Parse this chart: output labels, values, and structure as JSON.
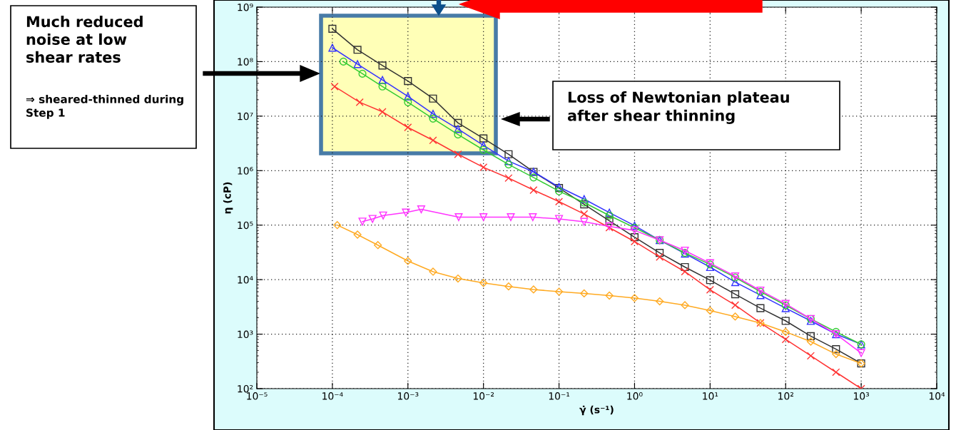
{
  "chart_data": {
    "type": "line",
    "xlabel": "γ̇ (s⁻¹)",
    "ylabel": "η (cP)",
    "log": "xy",
    "grid": true,
    "line_style": "solid",
    "xlim": [
      1e-05,
      10000.0
    ],
    "ylim": [
      100,
      1000000000.0
    ],
    "xticks": [
      {
        "value": 1e-05,
        "label": "10⁻⁵"
      },
      {
        "value": 0.0001,
        "label": "10⁻⁴"
      },
      {
        "value": 0.001,
        "label": "10⁻³"
      },
      {
        "value": 0.01,
        "label": "10⁻²"
      },
      {
        "value": 0.1,
        "label": "10⁻¹"
      },
      {
        "value": 1,
        "label": "10⁰"
      },
      {
        "value": 10,
        "label": "10¹"
      },
      {
        "value": 100,
        "label": "10²"
      },
      {
        "value": 1000,
        "label": "10³"
      },
      {
        "value": 10000,
        "label": "10⁴"
      }
    ],
    "yticks": [
      {
        "value": 100,
        "label": "10²"
      },
      {
        "value": 1000,
        "label": "10³"
      },
      {
        "value": 10000,
        "label": "10⁴"
      },
      {
        "value": 100000,
        "label": "10⁵"
      },
      {
        "value": 1000000,
        "label": "10⁶"
      },
      {
        "value": 10000000,
        "label": "10⁷"
      },
      {
        "value": 100000000,
        "label": "10⁸"
      },
      {
        "value": 1000000000,
        "label": "10⁹"
      }
    ],
    "series": [
      {
        "color": "#333333",
        "marker": "square",
        "x": [
          0.0001,
          0.000215,
          0.00046,
          0.001,
          0.00215,
          0.0046,
          0.01,
          0.0215,
          0.046,
          0.1,
          0.215,
          0.464,
          1,
          2.15,
          4.64,
          10,
          21.5,
          46.4,
          100,
          215,
          464,
          1000
        ],
        "values": [
          400000000.0,
          165000000.0,
          85000000.0,
          44000000.0,
          21000000.0,
          7500000.0,
          3900000.0,
          2000000.0,
          950000.0,
          480000.0,
          240000.0,
          120000.0,
          60000.0,
          31000.0,
          17000.0,
          9800.0,
          5400.0,
          3000.0,
          1750.0,
          920,
          530,
          290
        ]
      },
      {
        "color": "#3333ff",
        "marker": "triangle",
        "x": [
          0.0001,
          0.000215,
          0.00046,
          0.001,
          0.00215,
          0.0046,
          0.01,
          0.0215,
          0.046,
          0.1,
          0.215,
          0.464,
          1,
          2.15,
          4.64,
          10,
          21.5,
          46.4,
          100,
          215,
          464,
          1000
        ],
        "values": [
          180000000.0,
          90000000.0,
          46000000.0,
          23000000.0,
          11000000.0,
          5800000.0,
          2900000.0,
          1500000.0,
          950000.0,
          500000.0,
          300000.0,
          170000.0,
          98000.0,
          53000.0,
          30000.0,
          17000.0,
          9000.0,
          5200.0,
          3000.0,
          1750.0,
          1000.0,
          650
        ]
      },
      {
        "color": "#33cc33",
        "marker": "circle",
        "x": [
          0.00014,
          0.00025,
          0.00046,
          0.001,
          0.00215,
          0.0046,
          0.01,
          0.0215,
          0.046,
          0.1,
          0.215,
          0.464,
          1,
          2.15,
          4.64,
          10,
          21.5,
          46.4,
          100,
          215,
          464,
          1000
        ],
        "values": [
          100000000.0,
          60000000.0,
          35000000.0,
          18000000.0,
          9000000.0,
          4600000.0,
          2400000.0,
          1300000.0,
          750000.0,
          420000.0,
          260000.0,
          150000.0,
          90000.0,
          53000.0,
          31000.0,
          19000.0,
          11000.0,
          6000.0,
          3400.0,
          1900.0,
          1100.0,
          650
        ]
      },
      {
        "color": "#ff3333",
        "marker": "cross",
        "x": [
          0.000107,
          0.00023,
          0.00046,
          0.001,
          0.00215,
          0.0046,
          0.01,
          0.0215,
          0.046,
          0.1,
          0.215,
          0.464,
          1,
          2.15,
          4.64,
          10,
          21.5,
          46.4,
          100,
          215,
          464,
          1000
        ],
        "values": [
          35000000.0,
          18000000.0,
          12000000.0,
          6200000.0,
          3600000.0,
          2000000.0,
          1150000.0,
          730000.0,
          440000.0,
          270000.0,
          160000.0,
          90000.0,
          50000.0,
          26000.0,
          14000.0,
          6500.0,
          3400.0,
          1600.0,
          800,
          400,
          200,
          100
        ]
      },
      {
        "color": "#ff33ff",
        "marker": "triangle-down",
        "x": [
          0.00025,
          0.00034,
          0.00047,
          0.00094,
          0.0015,
          0.0047,
          0.01,
          0.023,
          0.045,
          0.1,
          0.215,
          0.464,
          1,
          2.15,
          4.64,
          10,
          21.5,
          46.4,
          100,
          215,
          464,
          1000
        ],
        "values": [
          116000.0,
          130000.0,
          150000.0,
          170000.0,
          195000.0,
          140000.0,
          140000.0,
          140000.0,
          140000.0,
          130000.0,
          115000.0,
          95000.0,
          80000.0,
          53000.0,
          34000.0,
          20000.0,
          11500.0,
          6300.0,
          3600.0,
          1900.0,
          1000.0,
          450
        ]
      },
      {
        "color": "#ffaa22",
        "marker": "diamond",
        "x": [
          0.000116,
          0.000215,
          0.0004,
          0.001,
          0.00215,
          0.0046,
          0.01,
          0.0215,
          0.046,
          0.1,
          0.215,
          0.464,
          1,
          2.15,
          4.64,
          10,
          21.5,
          46.4,
          100,
          215,
          464,
          1000
        ],
        "values": [
          100000.0,
          67000.0,
          43000.0,
          22000.0,
          14000.0,
          10500.0,
          8700.0,
          7500.0,
          6600.0,
          6000.0,
          5600.0,
          5100.0,
          4600.0,
          4000.0,
          3400.0,
          2700.0,
          2100.0,
          1600.0,
          1100.0,
          730,
          430,
          290
        ]
      }
    ],
    "annotations": [
      "Much reduced noise at low shear rates",
      "⇒ sheared-thinned during Step 1",
      "Loss of Newtonian plateau after shear thinning"
    ]
  }
}
